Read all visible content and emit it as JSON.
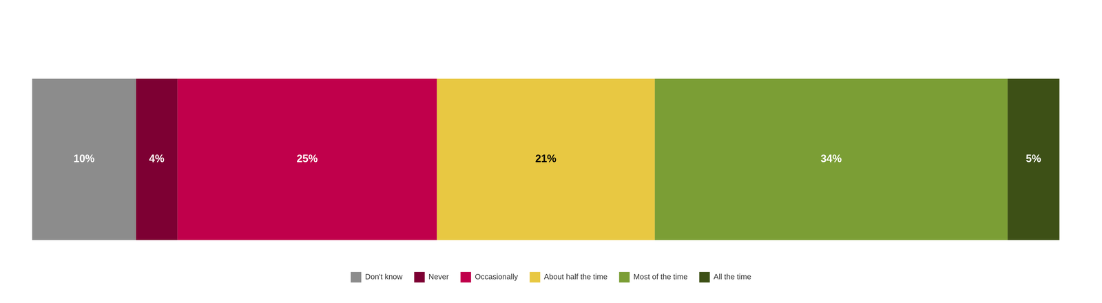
{
  "chart_data": {
    "type": "bar",
    "orientation": "horizontal",
    "stacked": true,
    "categories": [
      null
    ],
    "series": [
      {
        "name": "Don't know",
        "color": "#8C8C8C",
        "values": [
          10
        ],
        "value_labels": [
          "10%"
        ]
      },
      {
        "name": "Never",
        "color": "#7D0033",
        "values": [
          4
        ],
        "value_labels": [
          "4%"
        ]
      },
      {
        "name": "Occasionally",
        "color": "#C0004B",
        "values": [
          25
        ],
        "value_labels": [
          "25%"
        ]
      },
      {
        "name": "About half the time",
        "color": "#E8C842",
        "values": [
          21
        ],
        "value_labels": [
          "21%"
        ]
      },
      {
        "name": "Most of the time",
        "color": "#7B9E35",
        "values": [
          34
        ],
        "value_labels": [
          "34%"
        ]
      },
      {
        "name": "All the time",
        "color": "#3D5016",
        "values": [
          5
        ],
        "value_labels": [
          "5%"
        ]
      }
    ],
    "xlim": [
      0,
      100
    ],
    "grid": false,
    "tick_labels": false,
    "legend": "bottom",
    "data_labels": true
  }
}
